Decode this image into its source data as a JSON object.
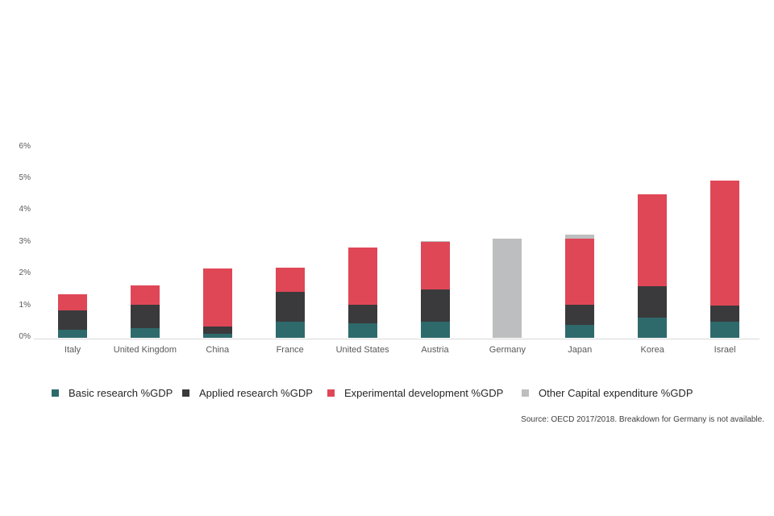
{
  "chart_data": {
    "type": "bar",
    "stacked": true,
    "title": "",
    "xlabel": "",
    "ylabel": "",
    "categories": [
      "Italy",
      "United Kingdom",
      "China",
      "France",
      "United States",
      "Austria",
      "Germany",
      "Japan",
      "Korea",
      "Israel"
    ],
    "series": [
      {
        "name": "Basic research %GDP",
        "color": "#2e6a6b",
        "values": [
          0.25,
          0.3,
          0.13,
          0.5,
          0.45,
          0.5,
          0.0,
          0.4,
          0.63,
          0.5
        ]
      },
      {
        "name": "Applied research %GDP",
        "color": "#3a3a3c",
        "values": [
          0.62,
          0.73,
          0.23,
          0.94,
          0.58,
          1.02,
          0.0,
          0.63,
          1.0,
          0.52
        ]
      },
      {
        "name": "Experimental development %GDP",
        "color": "#df4757",
        "values": [
          0.5,
          0.63,
          1.82,
          0.76,
          1.8,
          1.5,
          0.0,
          2.1,
          2.9,
          3.92
        ]
      },
      {
        "name": "Other Capital expenditure %GDP",
        "color": "#bdbebf",
        "values": [
          0.0,
          0.0,
          0.0,
          0.0,
          0.0,
          0.03,
          3.12,
          0.12,
          0.0,
          0.0
        ]
      }
    ],
    "totals": [
      1.37,
      1.66,
      2.18,
      2.2,
      2.83,
      3.05,
      3.12,
      3.25,
      4.53,
      4.94
    ],
    "ylim": [
      0,
      6
    ],
    "ytick_labels": [
      "0%",
      "1%",
      "2%",
      "3%",
      "4%",
      "5%",
      "6%"
    ],
    "grid": false,
    "legend_position": "bottom"
  },
  "colors": {
    "axis_line": "#d9d9d9",
    "tick_text": "#595959",
    "legend_text": "#262626"
  },
  "source_note": "Source: OECD 2017/2018. Breakdown for Germany is not available."
}
